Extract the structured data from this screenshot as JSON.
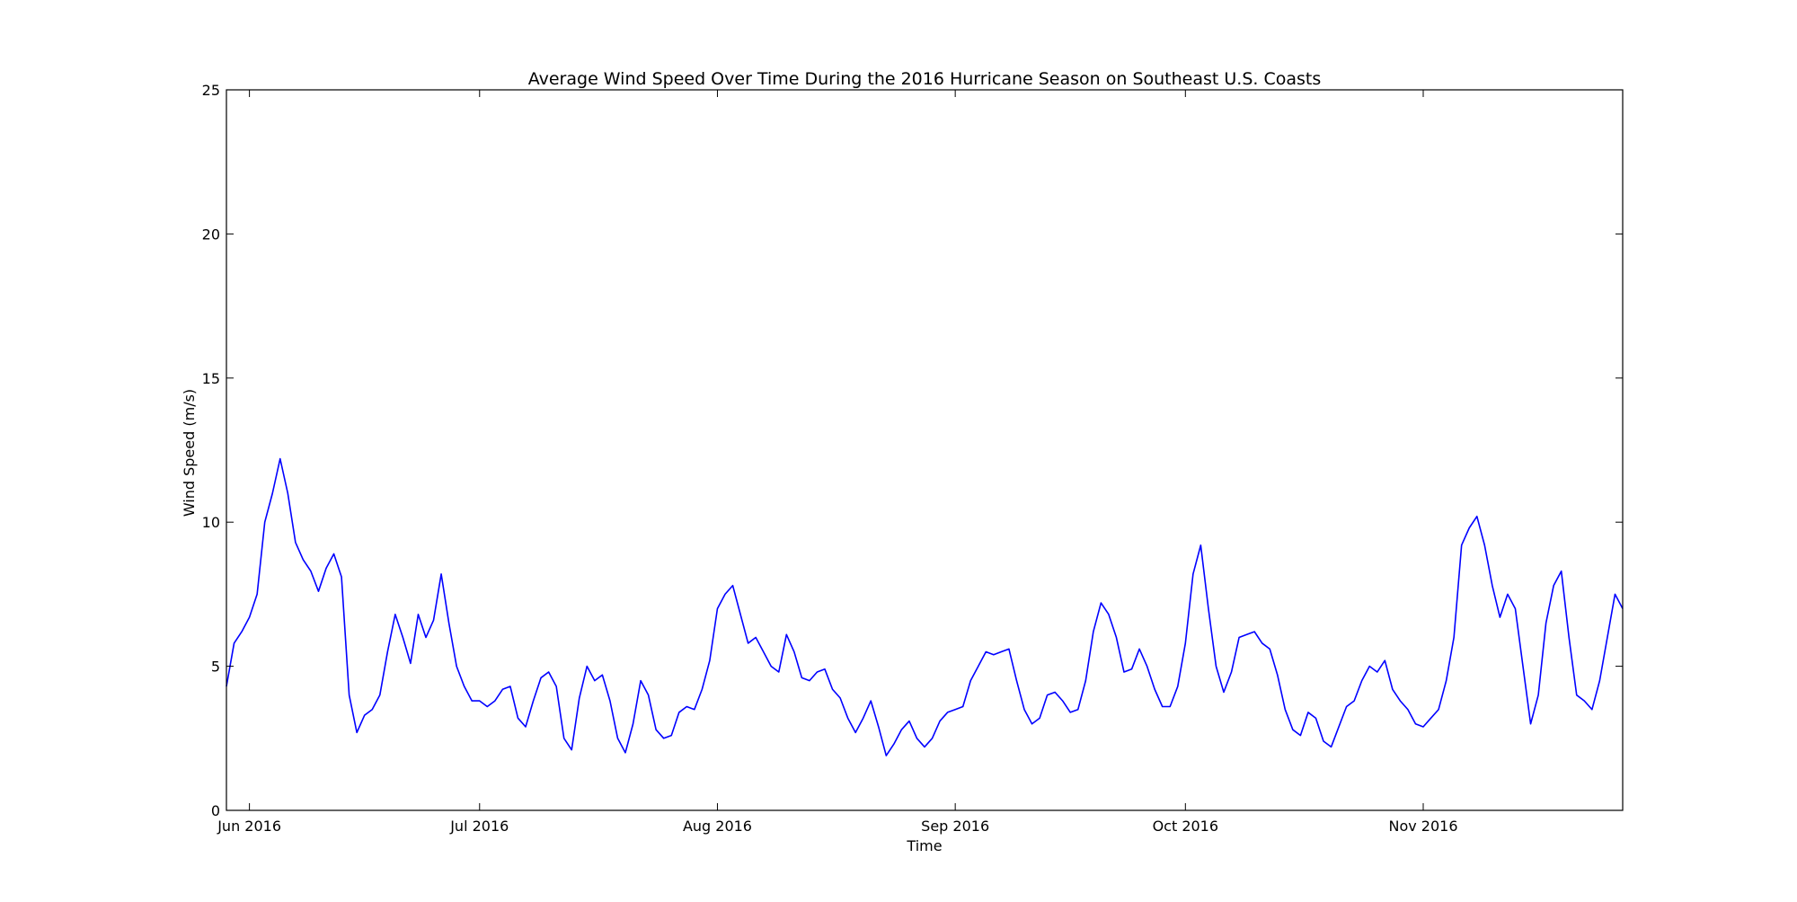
{
  "chart_data": {
    "type": "line",
    "title": "Average Wind Speed Over Time During the 2016 Hurricane Season on Southeast U.S. Coasts",
    "xlabel": "Time",
    "ylabel": "Wind Speed (m/s)",
    "x_start": "2016-05-29",
    "x_end": "2016-11-27",
    "xlim": [
      "2016-05-29",
      "2016-11-27"
    ],
    "ylim": [
      0,
      25
    ],
    "yticks": [
      "0",
      "5",
      "10",
      "15",
      "20",
      "25"
    ],
    "y_tick_values": [
      0,
      5,
      10,
      15,
      20,
      25
    ],
    "xticks": [
      {
        "label": "Jun 2016",
        "date": "2016-06-01"
      },
      {
        "label": "Jul 2016",
        "date": "2016-07-01"
      },
      {
        "label": "Aug 2016",
        "date": "2016-08-01"
      },
      {
        "label": "Sep 2016",
        "date": "2016-09-01"
      },
      {
        "label": "Oct 2016",
        "date": "2016-10-01"
      },
      {
        "label": "Nov 2016",
        "date": "2016-11-01"
      }
    ],
    "grid": false,
    "line_color": "#0000ff",
    "series": [
      {
        "points": [
          [
            "2016-05-29",
            4.3
          ],
          [
            "2016-05-30",
            5.8
          ],
          [
            "2016-05-31",
            6.2
          ],
          [
            "2016-06-01",
            6.7
          ],
          [
            "2016-06-02",
            7.5
          ],
          [
            "2016-06-03",
            10.0
          ],
          [
            "2016-06-04",
            11.0
          ],
          [
            "2016-06-05",
            12.2
          ],
          [
            "2016-06-06",
            11.0
          ],
          [
            "2016-06-07",
            9.3
          ],
          [
            "2016-06-08",
            8.7
          ],
          [
            "2016-06-09",
            8.3
          ],
          [
            "2016-06-10",
            7.6
          ],
          [
            "2016-06-11",
            8.4
          ],
          [
            "2016-06-12",
            8.9
          ],
          [
            "2016-06-13",
            8.1
          ],
          [
            "2016-06-14",
            4.0
          ],
          [
            "2016-06-15",
            2.7
          ],
          [
            "2016-06-16",
            3.3
          ],
          [
            "2016-06-17",
            3.5
          ],
          [
            "2016-06-18",
            4.0
          ],
          [
            "2016-06-19",
            5.5
          ],
          [
            "2016-06-20",
            6.8
          ],
          [
            "2016-06-21",
            6.0
          ],
          [
            "2016-06-22",
            5.1
          ],
          [
            "2016-06-23",
            6.8
          ],
          [
            "2016-06-24",
            6.0
          ],
          [
            "2016-06-25",
            6.6
          ],
          [
            "2016-06-26",
            8.2
          ],
          [
            "2016-06-27",
            6.5
          ],
          [
            "2016-06-28",
            5.0
          ],
          [
            "2016-06-29",
            4.3
          ],
          [
            "2016-06-30",
            3.8
          ],
          [
            "2016-07-01",
            3.8
          ],
          [
            "2016-07-02",
            3.6
          ],
          [
            "2016-07-03",
            3.8
          ],
          [
            "2016-07-04",
            4.2
          ],
          [
            "2016-07-05",
            4.3
          ],
          [
            "2016-07-06",
            3.2
          ],
          [
            "2016-07-07",
            2.9
          ],
          [
            "2016-07-08",
            3.8
          ],
          [
            "2016-07-09",
            4.6
          ],
          [
            "2016-07-10",
            4.8
          ],
          [
            "2016-07-11",
            4.3
          ],
          [
            "2016-07-12",
            2.5
          ],
          [
            "2016-07-13",
            2.1
          ],
          [
            "2016-07-14",
            3.9
          ],
          [
            "2016-07-15",
            5.0
          ],
          [
            "2016-07-16",
            4.5
          ],
          [
            "2016-07-17",
            4.7
          ],
          [
            "2016-07-18",
            3.8
          ],
          [
            "2016-07-19",
            2.5
          ],
          [
            "2016-07-20",
            2.0
          ],
          [
            "2016-07-21",
            3.0
          ],
          [
            "2016-07-22",
            4.5
          ],
          [
            "2016-07-23",
            4.0
          ],
          [
            "2016-07-24",
            2.8
          ],
          [
            "2016-07-25",
            2.5
          ],
          [
            "2016-07-26",
            2.6
          ],
          [
            "2016-07-27",
            3.4
          ],
          [
            "2016-07-28",
            3.6
          ],
          [
            "2016-07-29",
            3.5
          ],
          [
            "2016-07-30",
            4.2
          ],
          [
            "2016-07-31",
            5.2
          ],
          [
            "2016-08-01",
            7.0
          ],
          [
            "2016-08-02",
            7.5
          ],
          [
            "2016-08-03",
            7.8
          ],
          [
            "2016-08-04",
            6.8
          ],
          [
            "2016-08-05",
            5.8
          ],
          [
            "2016-08-06",
            6.0
          ],
          [
            "2016-08-07",
            5.5
          ],
          [
            "2016-08-08",
            5.0
          ],
          [
            "2016-08-09",
            4.8
          ],
          [
            "2016-08-10",
            6.1
          ],
          [
            "2016-08-11",
            5.5
          ],
          [
            "2016-08-12",
            4.6
          ],
          [
            "2016-08-13",
            4.5
          ],
          [
            "2016-08-14",
            4.8
          ],
          [
            "2016-08-15",
            4.9
          ],
          [
            "2016-08-16",
            4.2
          ],
          [
            "2016-08-17",
            3.9
          ],
          [
            "2016-08-18",
            3.2
          ],
          [
            "2016-08-19",
            2.7
          ],
          [
            "2016-08-20",
            3.2
          ],
          [
            "2016-08-21",
            3.8
          ],
          [
            "2016-08-22",
            2.9
          ],
          [
            "2016-08-23",
            1.9
          ],
          [
            "2016-08-24",
            2.3
          ],
          [
            "2016-08-25",
            2.8
          ],
          [
            "2016-08-26",
            3.1
          ],
          [
            "2016-08-27",
            2.5
          ],
          [
            "2016-08-28",
            2.2
          ],
          [
            "2016-08-29",
            2.5
          ],
          [
            "2016-08-30",
            3.1
          ],
          [
            "2016-08-31",
            3.4
          ],
          [
            "2016-09-01",
            3.5
          ],
          [
            "2016-09-02",
            3.6
          ],
          [
            "2016-09-03",
            4.5
          ],
          [
            "2016-09-04",
            5.0
          ],
          [
            "2016-09-05",
            5.5
          ],
          [
            "2016-09-06",
            5.4
          ],
          [
            "2016-09-07",
            5.5
          ],
          [
            "2016-09-08",
            5.6
          ],
          [
            "2016-09-09",
            4.5
          ],
          [
            "2016-09-10",
            3.5
          ],
          [
            "2016-09-11",
            3.0
          ],
          [
            "2016-09-12",
            3.2
          ],
          [
            "2016-09-13",
            4.0
          ],
          [
            "2016-09-14",
            4.1
          ],
          [
            "2016-09-15",
            3.8
          ],
          [
            "2016-09-16",
            3.4
          ],
          [
            "2016-09-17",
            3.5
          ],
          [
            "2016-09-18",
            4.5
          ],
          [
            "2016-09-19",
            6.2
          ],
          [
            "2016-09-20",
            7.2
          ],
          [
            "2016-09-21",
            6.8
          ],
          [
            "2016-09-22",
            6.0
          ],
          [
            "2016-09-23",
            4.8
          ],
          [
            "2016-09-24",
            4.9
          ],
          [
            "2016-09-25",
            5.6
          ],
          [
            "2016-09-26",
            5.0
          ],
          [
            "2016-09-27",
            4.2
          ],
          [
            "2016-09-28",
            3.6
          ],
          [
            "2016-09-29",
            3.6
          ],
          [
            "2016-09-30",
            4.3
          ],
          [
            "2016-10-01",
            5.8
          ],
          [
            "2016-10-02",
            8.2
          ],
          [
            "2016-10-03",
            9.2
          ],
          [
            "2016-10-04",
            7.0
          ],
          [
            "2016-10-05",
            5.0
          ],
          [
            "2016-10-06",
            4.1
          ],
          [
            "2016-10-07",
            4.8
          ],
          [
            "2016-10-08",
            6.0
          ],
          [
            "2016-10-09",
            6.1
          ],
          [
            "2016-10-10",
            6.2
          ],
          [
            "2016-10-11",
            5.8
          ],
          [
            "2016-10-12",
            5.6
          ],
          [
            "2016-10-13",
            4.7
          ],
          [
            "2016-10-14",
            3.5
          ],
          [
            "2016-10-15",
            2.8
          ],
          [
            "2016-10-16",
            2.6
          ],
          [
            "2016-10-17",
            3.4
          ],
          [
            "2016-10-18",
            3.2
          ],
          [
            "2016-10-19",
            2.4
          ],
          [
            "2016-10-20",
            2.2
          ],
          [
            "2016-10-21",
            2.9
          ],
          [
            "2016-10-22",
            3.6
          ],
          [
            "2016-10-23",
            3.8
          ],
          [
            "2016-10-24",
            4.5
          ],
          [
            "2016-10-25",
            5.0
          ],
          [
            "2016-10-26",
            4.8
          ],
          [
            "2016-10-27",
            5.2
          ],
          [
            "2016-10-28",
            4.2
          ],
          [
            "2016-10-29",
            3.8
          ],
          [
            "2016-10-30",
            3.5
          ],
          [
            "2016-10-31",
            3.0
          ],
          [
            "2016-11-01",
            2.9
          ],
          [
            "2016-11-02",
            3.2
          ],
          [
            "2016-11-03",
            3.5
          ],
          [
            "2016-11-04",
            4.5
          ],
          [
            "2016-11-05",
            6.0
          ],
          [
            "2016-11-06",
            9.2
          ],
          [
            "2016-11-07",
            9.8
          ],
          [
            "2016-11-08",
            10.2
          ],
          [
            "2016-11-09",
            9.2
          ],
          [
            "2016-11-10",
            7.8
          ],
          [
            "2016-11-11",
            6.7
          ],
          [
            "2016-11-12",
            7.5
          ],
          [
            "2016-11-13",
            7.0
          ],
          [
            "2016-11-14",
            5.0
          ],
          [
            "2016-11-15",
            3.0
          ],
          [
            "2016-11-16",
            4.0
          ],
          [
            "2016-11-17",
            6.5
          ],
          [
            "2016-11-18",
            7.8
          ],
          [
            "2016-11-19",
            8.3
          ],
          [
            "2016-11-20",
            6.0
          ],
          [
            "2016-11-21",
            4.0
          ],
          [
            "2016-11-22",
            3.8
          ],
          [
            "2016-11-23",
            3.5
          ],
          [
            "2016-11-24",
            4.5
          ],
          [
            "2016-11-25",
            6.0
          ],
          [
            "2016-11-26",
            7.5
          ],
          [
            "2016-11-27",
            7.0
          ]
        ]
      }
    ]
  }
}
